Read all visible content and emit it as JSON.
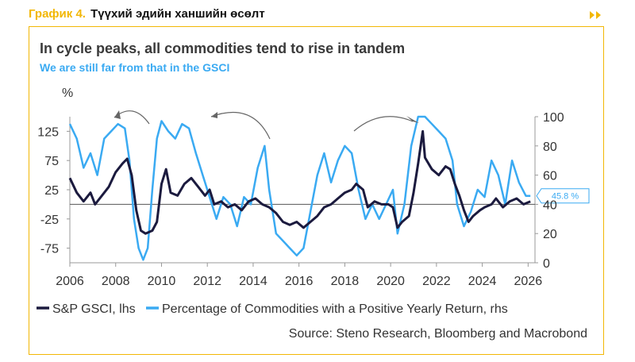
{
  "header": {
    "label": "График 4.",
    "title": "Түүхий эдийн ханшийн өсөлт"
  },
  "colors": {
    "accent": "#f2b705",
    "gsci": "#1b1a3e",
    "pct": "#3aaaf2",
    "title": "#3a3a3a"
  },
  "chart_data": {
    "type": "line",
    "title": "In cycle peaks, all commodities tend to rise in tandem",
    "subtitle": "We are still far from that in the GSCI",
    "left_axis_unit": "%",
    "x_ticks": [
      "2006",
      "2008",
      "2010",
      "2012",
      "2014",
      "2016",
      "2018",
      "2020",
      "2022",
      "2024",
      "2026"
    ],
    "x_range": [
      2006,
      2026.3
    ],
    "y_left_ticks": [
      "125",
      "75",
      "25",
      "-25",
      "-75"
    ],
    "y_left_range": [
      -100,
      150
    ],
    "y_right_ticks": [
      "100",
      "80",
      "60",
      "40",
      "20",
      "0"
    ],
    "y_right_range": [
      0,
      100
    ],
    "last_value_label": "45.8 %",
    "series": [
      {
        "name": "S&P GSCI, lhs",
        "axis": "left",
        "points": [
          [
            2006.0,
            45
          ],
          [
            2006.3,
            20
          ],
          [
            2006.6,
            5
          ],
          [
            2006.9,
            20
          ],
          [
            2007.1,
            0
          ],
          [
            2007.4,
            15
          ],
          [
            2007.7,
            30
          ],
          [
            2008.0,
            55
          ],
          [
            2008.3,
            70
          ],
          [
            2008.5,
            78
          ],
          [
            2008.7,
            50
          ],
          [
            2008.9,
            -10
          ],
          [
            2009.1,
            -45
          ],
          [
            2009.3,
            -50
          ],
          [
            2009.6,
            -45
          ],
          [
            2009.8,
            -30
          ],
          [
            2010.0,
            35
          ],
          [
            2010.2,
            60
          ],
          [
            2010.4,
            20
          ],
          [
            2010.7,
            15
          ],
          [
            2011.0,
            35
          ],
          [
            2011.3,
            45
          ],
          [
            2011.6,
            30
          ],
          [
            2011.9,
            15
          ],
          [
            2012.1,
            25
          ],
          [
            2012.3,
            0
          ],
          [
            2012.6,
            5
          ],
          [
            2012.9,
            -5
          ],
          [
            2013.2,
            0
          ],
          [
            2013.5,
            -10
          ],
          [
            2013.8,
            5
          ],
          [
            2014.1,
            10
          ],
          [
            2014.4,
            0
          ],
          [
            2014.7,
            -5
          ],
          [
            2015.0,
            -15
          ],
          [
            2015.3,
            -30
          ],
          [
            2015.6,
            -35
          ],
          [
            2015.9,
            -30
          ],
          [
            2016.2,
            -40
          ],
          [
            2016.5,
            -30
          ],
          [
            2016.8,
            -20
          ],
          [
            2017.1,
            -5
          ],
          [
            2017.4,
            0
          ],
          [
            2017.7,
            10
          ],
          [
            2018.0,
            20
          ],
          [
            2018.3,
            25
          ],
          [
            2018.5,
            35
          ],
          [
            2018.8,
            25
          ],
          [
            2019.0,
            -5
          ],
          [
            2019.3,
            5
          ],
          [
            2019.6,
            0
          ],
          [
            2019.9,
            0
          ],
          [
            2020.1,
            -5
          ],
          [
            2020.3,
            -40
          ],
          [
            2020.5,
            -30
          ],
          [
            2020.8,
            -20
          ],
          [
            2021.0,
            20
          ],
          [
            2021.2,
            70
          ],
          [
            2021.4,
            125
          ],
          [
            2021.5,
            80
          ],
          [
            2021.8,
            60
          ],
          [
            2022.1,
            50
          ],
          [
            2022.4,
            65
          ],
          [
            2022.6,
            60
          ],
          [
            2022.8,
            35
          ],
          [
            2023.0,
            15
          ],
          [
            2023.2,
            -10
          ],
          [
            2023.4,
            -30
          ],
          [
            2023.6,
            -20
          ],
          [
            2023.9,
            -10
          ],
          [
            2024.1,
            -5
          ],
          [
            2024.4,
            0
          ],
          [
            2024.6,
            10
          ],
          [
            2024.9,
            -5
          ],
          [
            2025.2,
            5
          ],
          [
            2025.5,
            10
          ],
          [
            2025.8,
            0
          ],
          [
            2026.1,
            5
          ]
        ]
      },
      {
        "name": "Percentage of Commodities with a Positive Yearly Return, rhs",
        "axis": "right",
        "points": [
          [
            2006.0,
            95
          ],
          [
            2006.3,
            85
          ],
          [
            2006.6,
            65
          ],
          [
            2006.9,
            75
          ],
          [
            2007.2,
            60
          ],
          [
            2007.5,
            85
          ],
          [
            2007.8,
            90
          ],
          [
            2008.1,
            95
          ],
          [
            2008.4,
            92
          ],
          [
            2008.6,
            70
          ],
          [
            2008.8,
            30
          ],
          [
            2009.0,
            10
          ],
          [
            2009.2,
            2
          ],
          [
            2009.4,
            10
          ],
          [
            2009.6,
            50
          ],
          [
            2009.8,
            85
          ],
          [
            2010.0,
            97
          ],
          [
            2010.3,
            90
          ],
          [
            2010.6,
            85
          ],
          [
            2010.9,
            95
          ],
          [
            2011.2,
            92
          ],
          [
            2011.5,
            75
          ],
          [
            2011.8,
            60
          ],
          [
            2012.1,
            45
          ],
          [
            2012.4,
            30
          ],
          [
            2012.7,
            45
          ],
          [
            2013.0,
            40
          ],
          [
            2013.3,
            25
          ],
          [
            2013.6,
            45
          ],
          [
            2013.9,
            40
          ],
          [
            2014.2,
            65
          ],
          [
            2014.5,
            80
          ],
          [
            2014.7,
            50
          ],
          [
            2015.0,
            20
          ],
          [
            2015.3,
            15
          ],
          [
            2015.6,
            10
          ],
          [
            2015.9,
            5
          ],
          [
            2016.2,
            10
          ],
          [
            2016.5,
            35
          ],
          [
            2016.8,
            60
          ],
          [
            2017.1,
            75
          ],
          [
            2017.4,
            55
          ],
          [
            2017.7,
            70
          ],
          [
            2018.0,
            80
          ],
          [
            2018.3,
            75
          ],
          [
            2018.6,
            50
          ],
          [
            2018.9,
            30
          ],
          [
            2019.2,
            40
          ],
          [
            2019.5,
            30
          ],
          [
            2019.8,
            40
          ],
          [
            2020.1,
            50
          ],
          [
            2020.3,
            20
          ],
          [
            2020.6,
            40
          ],
          [
            2020.9,
            80
          ],
          [
            2021.2,
            100
          ],
          [
            2021.5,
            100
          ],
          [
            2021.8,
            95
          ],
          [
            2022.1,
            90
          ],
          [
            2022.4,
            85
          ],
          [
            2022.7,
            70
          ],
          [
            2022.9,
            40
          ],
          [
            2023.2,
            25
          ],
          [
            2023.5,
            35
          ],
          [
            2023.8,
            50
          ],
          [
            2024.1,
            45
          ],
          [
            2024.4,
            70
          ],
          [
            2024.7,
            60
          ],
          [
            2025.0,
            40
          ],
          [
            2025.3,
            70
          ],
          [
            2025.6,
            55
          ],
          [
            2025.9,
            45.8
          ],
          [
            2026.1,
            45.8
          ]
        ]
      }
    ],
    "source": "Source: Steno Research, Bloomberg and Macrobond"
  }
}
